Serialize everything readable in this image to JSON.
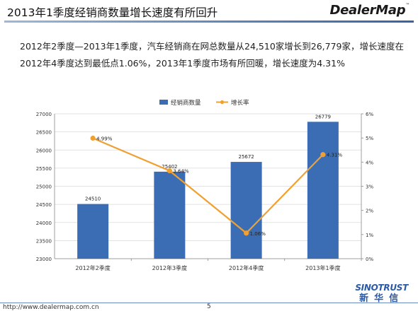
{
  "slide": {
    "title": "2013年1季度经销商数量增长速度有所回升",
    "logo": "DealerMap",
    "logo_mark": "™",
    "paragraph": "2012年2季度—2013年1季度，汽车经销商在网总数量从24,510家增长到26,779家，增长速度在2012年4季度达到最低点1.06%，2013年1季度市场有所回暖，增长速度为4.31%"
  },
  "footer": {
    "url": "http://www.dealermap.com.cn",
    "page": "5",
    "company_en": "SINOTRUST",
    "company_cn": "新华信"
  },
  "colors": {
    "bar": "#3b6db5",
    "line": "#f0a030",
    "grid": "#d9d9d9",
    "title_rule": "#5f86ba"
  },
  "chart_data": {
    "type": "bar",
    "categories": [
      "2012年2季度",
      "2012年3季度",
      "2012年4季度",
      "2013年1季度"
    ],
    "series": [
      {
        "name": "经销商数量",
        "type": "bar",
        "axis": "left",
        "values": [
          24510,
          25402,
          25672,
          26779
        ],
        "labels": [
          "24510",
          "25402",
          "25672",
          "26779"
        ]
      },
      {
        "name": "增长率",
        "type": "line",
        "axis": "right",
        "values": [
          4.99,
          3.64,
          1.06,
          4.31
        ],
        "labels": [
          "4.99%",
          "3.64%",
          "1.06%",
          "4.31%"
        ]
      }
    ],
    "y_left": {
      "min": 23000,
      "max": 27000,
      "ticks": [
        "23000",
        "23500",
        "24000",
        "24500",
        "25000",
        "25500",
        "26000",
        "26500",
        "27000"
      ]
    },
    "y_right": {
      "min": 0,
      "max": 6,
      "ticks": [
        "0%",
        "1%",
        "2%",
        "3%",
        "4%",
        "5%",
        "6%"
      ]
    },
    "legend_position": "top-center",
    "grid": true
  }
}
